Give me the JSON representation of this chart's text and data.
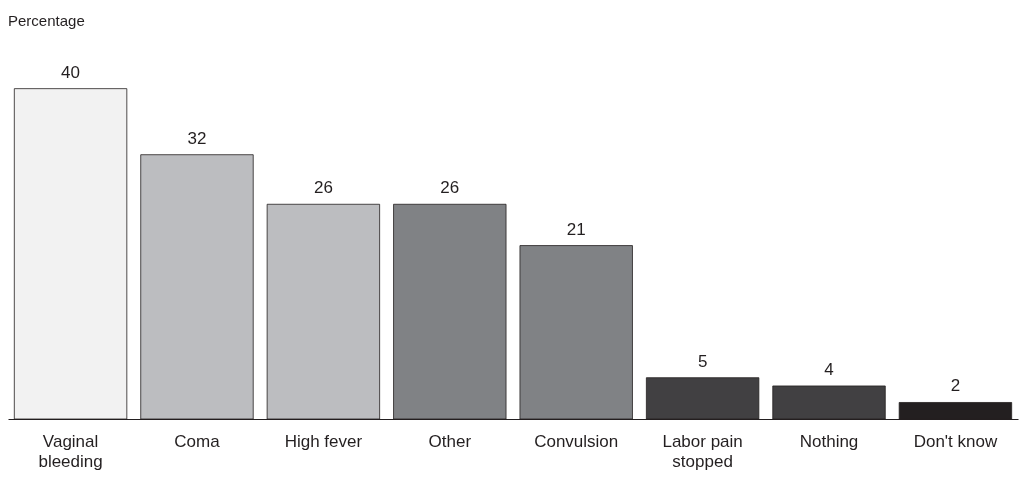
{
  "chart_data": {
    "type": "bar",
    "ylabel": "Percentage",
    "categories": [
      "Vaginal bleeding",
      "Coma",
      "High fever",
      "Other",
      "Convulsion",
      "Labor pain stopped",
      "Nothing",
      "Don't know"
    ],
    "values": [
      40,
      32,
      26,
      26,
      21,
      5,
      4,
      2
    ],
    "colors": [
      "#f2f2f2",
      "#bcbdc0",
      "#bcbdc0",
      "#808285",
      "#808285",
      "#414042",
      "#414042",
      "#231f20"
    ],
    "data_labels": true,
    "grid": false
  }
}
